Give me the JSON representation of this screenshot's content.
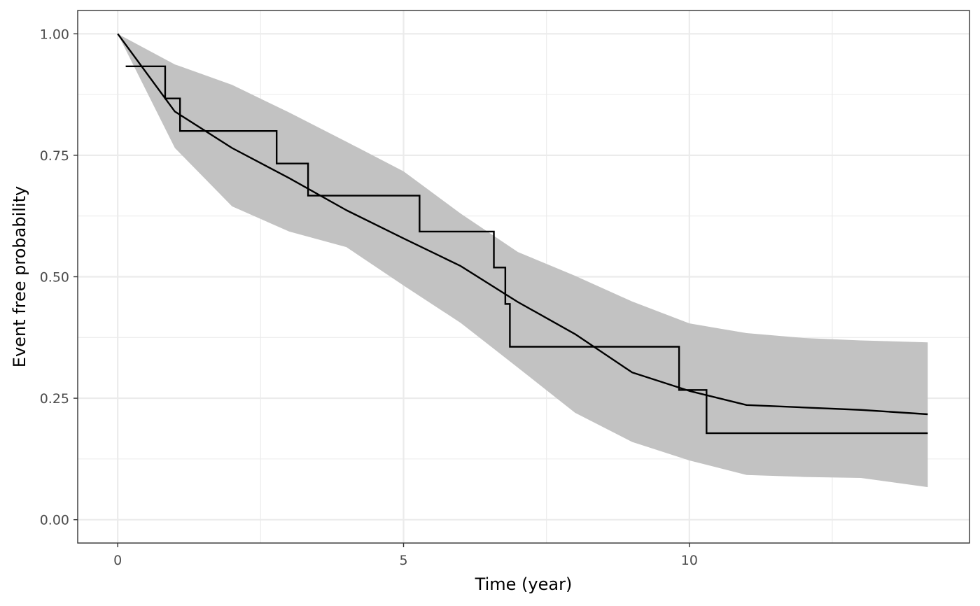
{
  "chart_data": {
    "type": "line",
    "title": "",
    "xlabel": "Time (year)",
    "ylabel": "Event free probability",
    "xlim": [
      -0.7,
      14.9
    ],
    "ylim": [
      -0.048,
      1.048
    ],
    "x_ticks": [
      0,
      5,
      10
    ],
    "x_tick_labels": [
      "0",
      "5",
      "10"
    ],
    "y_ticks": [
      0,
      0.25,
      0.5,
      0.75,
      1.0
    ],
    "y_tick_labels": [
      "0.00",
      "0.25",
      "0.50",
      "0.75",
      "1.00"
    ],
    "x_minor_ticks": [
      2.5,
      7.5,
      12.5
    ],
    "y_minor_ticks": [
      0.125,
      0.375,
      0.625,
      0.875
    ],
    "grid": true,
    "legend": "none",
    "colors": {
      "ribbon": "#c2c2c2",
      "line": "#000000",
      "grid": "#ebebeb",
      "panel_border": "#333333",
      "tick_label": "#4d4d4d"
    },
    "series": [
      {
        "type": "band",
        "x": [
          0,
          1.0,
          2.0,
          3.0,
          4.0,
          5.0,
          6.0,
          7.0,
          8.0,
          9.0,
          10.0,
          11.0,
          12.0,
          13.0,
          14.17
        ],
        "lower": [
          1.0,
          0.765,
          0.645,
          0.593,
          0.561,
          0.482,
          0.405,
          0.313,
          0.22,
          0.16,
          0.122,
          0.092,
          0.088,
          0.086,
          0.067
        ],
        "upper": [
          1.0,
          0.937,
          0.895,
          0.838,
          0.778,
          0.717,
          0.63,
          0.551,
          0.502,
          0.449,
          0.404,
          0.384,
          0.374,
          0.369,
          0.365
        ]
      },
      {
        "type": "line",
        "x": [
          0,
          1.0,
          2.0,
          3.0,
          4.0,
          5.0,
          6.0,
          7.0,
          8.0,
          9.0,
          10.0,
          11.0,
          12.0,
          13.0,
          14.17
        ],
        "y": [
          1.0,
          0.84,
          0.765,
          0.703,
          0.637,
          0.579,
          0.522,
          0.448,
          0.382,
          0.303,
          0.265,
          0.236,
          0.231,
          0.226,
          0.217
        ]
      },
      {
        "type": "step",
        "x": [
          0.14,
          0.83,
          1.09,
          2.78,
          3.33,
          5.28,
          6.58,
          6.78,
          6.86,
          9.82,
          10.3,
          14.17
        ],
        "y": [
          0.933,
          0.867,
          0.8,
          0.733,
          0.667,
          0.593,
          0.519,
          0.444,
          0.356,
          0.267,
          0.178,
          0.178
        ]
      }
    ]
  }
}
